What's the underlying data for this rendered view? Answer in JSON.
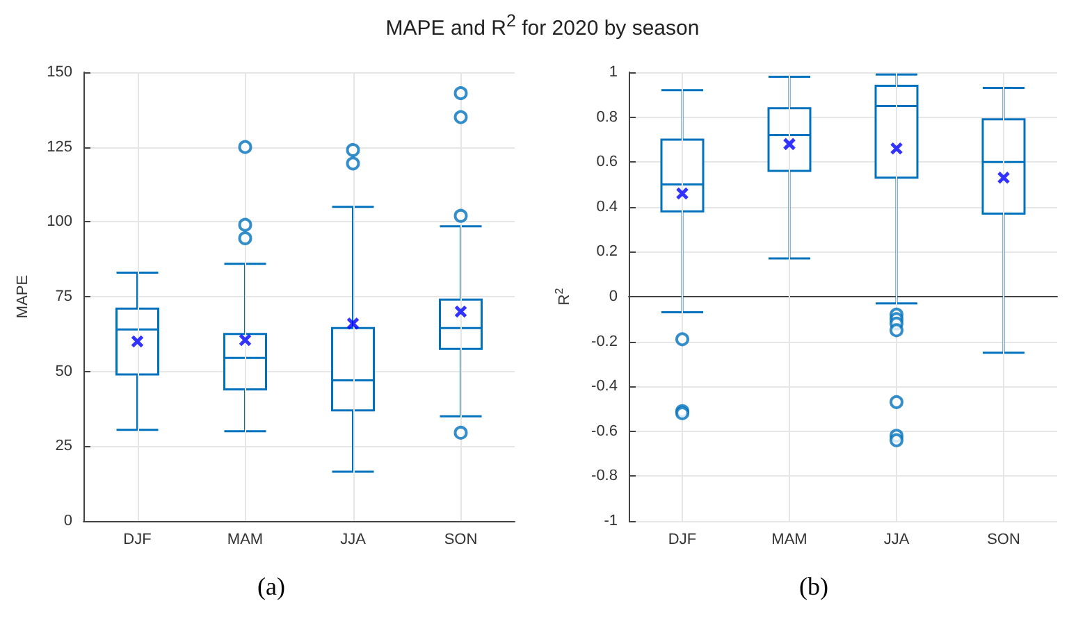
{
  "chart_data": [
    {
      "type": "box",
      "title": "MAPE and R$^{2}$ for 2020 by season",
      "ylabel": "MAPE",
      "annotations": [
        "(a)"
      ],
      "categories": [
        "DJF",
        "MAM",
        "JJA",
        "SON"
      ],
      "color": "#0072bd",
      "grid": true,
      "ylim": [
        0,
        150
      ],
      "yticks": [
        0,
        25,
        50,
        75,
        100,
        125,
        150
      ],
      "boxes": [
        {
          "low": 30.5,
          "q1": 49,
          "median": 64,
          "q3": 71,
          "high": 83,
          "mean": 60
        },
        {
          "low": 30,
          "q1": 44,
          "median": 54.5,
          "q3": 62.5,
          "high": 86,
          "mean": 60.5,
          "outliers": [
            94.5,
            99,
            125
          ]
        },
        {
          "low": 16.5,
          "q1": 37,
          "median": 47,
          "q3": 64.5,
          "high": 105,
          "mean": 66,
          "outliers": [
            119.5,
            124
          ]
        },
        {
          "low": 35,
          "q1": 57.5,
          "median": 64.5,
          "q3": 74,
          "high": 98.5,
          "mean": 70,
          "outliers": [
            29.5,
            102,
            135,
            143
          ]
        }
      ]
    },
    {
      "type": "box",
      "ylabel": "R$^{2}$",
      "annotations": [
        "(b)"
      ],
      "categories": [
        "DJF",
        "MAM",
        "JJA",
        "SON"
      ],
      "color": "#0072bd",
      "grid": true,
      "ylim": [
        -1,
        1
      ],
      "yticks": [
        -1,
        -0.8,
        -0.6,
        -0.4,
        -0.2,
        0,
        0.2,
        0.4,
        0.6,
        0.8,
        1
      ],
      "boxes": [
        {
          "low": -0.07,
          "q1": 0.38,
          "median": 0.5,
          "q3": 0.7,
          "high": 0.92,
          "mean": 0.46,
          "outliers": [
            -0.19,
            -0.51,
            -0.52
          ]
        },
        {
          "low": 0.17,
          "q1": 0.56,
          "median": 0.72,
          "q3": 0.84,
          "high": 0.98,
          "mean": 0.68
        },
        {
          "low": -0.03,
          "q1": 0.53,
          "median": 0.85,
          "q3": 0.94,
          "high": 0.99,
          "mean": 0.66,
          "outliers": [
            -0.08,
            -0.1,
            -0.12,
            -0.15,
            -0.47,
            -0.62,
            -0.64
          ]
        },
        {
          "low": -0.25,
          "q1": 0.37,
          "median": 0.6,
          "q3": 0.79,
          "high": 0.93,
          "mean": 0.53
        }
      ]
    }
  ]
}
